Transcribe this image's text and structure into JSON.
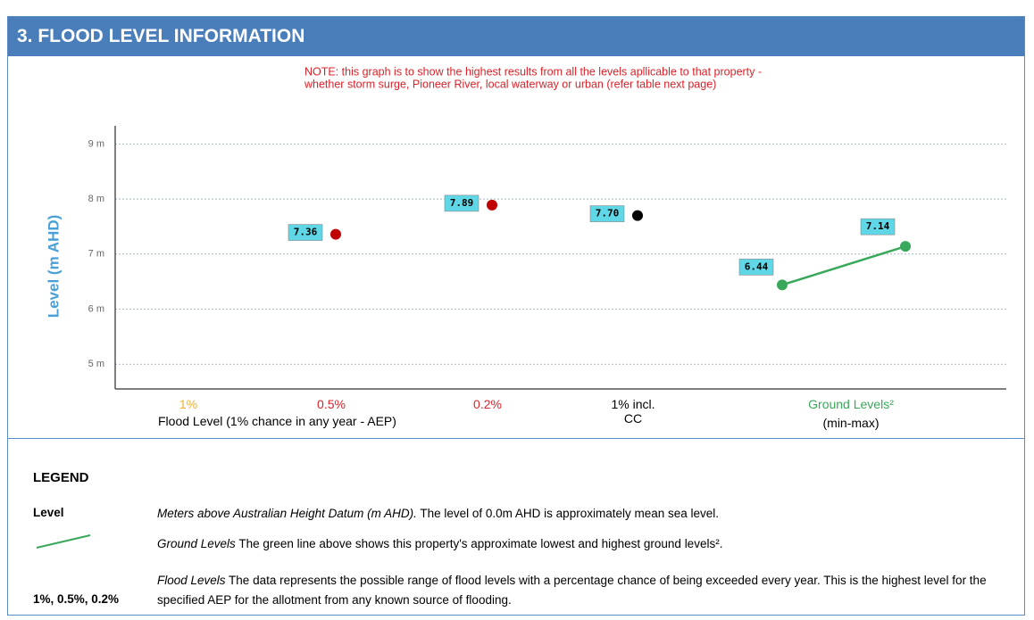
{
  "header": {
    "title": "3. FLOOD LEVEL INFORMATION"
  },
  "chart_data": {
    "type": "scatter",
    "note": [
      "NOTE: this graph is to show the highest results from all the levels apllicable to that property -",
      "whether storm surge, Pioneer River, local waterway or urban (refer table next page)"
    ],
    "ylabel": "Level (m AHD)",
    "xlabel": "Flood Level (1% chance in any year - AEP)",
    "ground_sublabel": "(min-max)",
    "categories": [
      "1%",
      "0.5%",
      "0.2%",
      "1% incl. CC",
      "Ground Levels²"
    ],
    "category_colors": [
      "#f0b030",
      "#d8232a",
      "#d8232a",
      "#000000",
      "#3aa85a"
    ],
    "ylim": [
      4.55,
      9.33
    ],
    "yticks": [
      {
        "value": 5,
        "label": "5 m"
      },
      {
        "value": 6,
        "label": "6 m"
      },
      {
        "value": 7,
        "label": "7 m"
      },
      {
        "value": 8,
        "label": "8 m"
      },
      {
        "value": 9,
        "label": "9 m"
      }
    ],
    "grid": true,
    "series": [
      {
        "values": [
          null,
          7.36,
          7.89,
          7.7,
          null
        ],
        "value_labels": [
          null,
          "7.36",
          "7.89",
          "7.70",
          null
        ],
        "colors": [
          null,
          "#c00000",
          "#c00000",
          "#000000",
          null
        ]
      },
      {
        "values": [
          6.44,
          7.14
        ],
        "value_labels": [
          "6.44",
          "7.14"
        ],
        "color": "#3aa85a"
      }
    ]
  },
  "legend": {
    "title": "LEGEND",
    "rows": [
      {
        "label": "Level",
        "term": "Meters above Australian Height Datum (m AHD).",
        "text": " The level of 0.0m AHD is approximately mean sea level."
      },
      {
        "term": "Ground Levels",
        "text": " The green line above shows this property's approximate lowest and highest ground levels².",
        "color": "#3aa85a"
      },
      {
        "label": "1%, 0.5%, 0.2%",
        "term": "Flood Levels",
        "text": " The data represents the possible range of flood levels with a percentage chance of being exceeded every year. This is the highest level for the specified AEP for the allotment from any known source of flooding."
      }
    ]
  }
}
